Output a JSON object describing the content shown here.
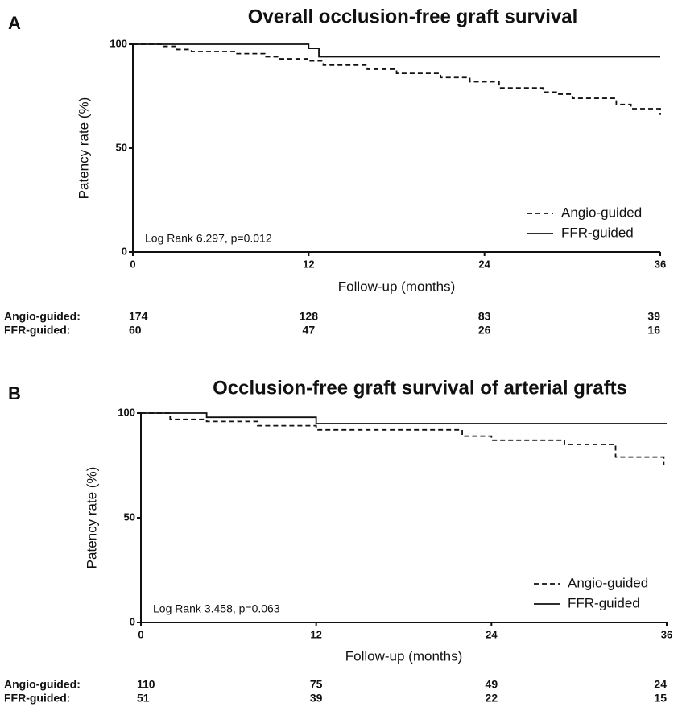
{
  "chart_data": [
    {
      "type": "line",
      "panel": "A",
      "title": "Overall occlusion-free graft survival",
      "x_label": "Follow-up (months)",
      "y_label": "Patency rate (%)",
      "annotation": "Log Rank 6.297, p=0.012",
      "step": true,
      "legend": "lower right",
      "xlim": [
        0,
        36
      ],
      "xticks": [
        0,
        12,
        24,
        36
      ],
      "ylim": [
        0,
        100
      ],
      "yticks": [
        0,
        50,
        100
      ],
      "series": [
        {
          "name": "Angio-guided",
          "color": "#111111",
          "line_style": "dashed",
          "x": [
            0,
            2,
            3,
            4,
            7,
            9,
            10,
            12,
            13,
            16,
            18,
            21,
            23,
            25,
            28,
            29,
            30,
            33,
            34,
            36
          ],
          "values": [
            100,
            99,
            97.5,
            96.5,
            95.5,
            94,
            93,
            92,
            90,
            88,
            86,
            84,
            82,
            79,
            77,
            76,
            74,
            71,
            69,
            66
          ]
        },
        {
          "name": "FFR-guided",
          "color": "#111111",
          "line_style": "solid",
          "x": [
            0,
            12,
            12.7,
            36
          ],
          "values": [
            100,
            98,
            94,
            94
          ]
        }
      ],
      "risk_table": [
        {
          "name": "Angio-guided:",
          "counts": [
            174,
            128,
            83,
            39
          ]
        },
        {
          "name": "FFR-guided:",
          "counts": [
            60,
            47,
            26,
            16
          ]
        }
      ]
    },
    {
      "type": "line",
      "panel": "B",
      "title": "Occlusion-free graft survival of arterial grafts",
      "x_label": "Follow-up (months)",
      "y_label": "Patency rate (%)",
      "annotation": "Log Rank 3.458, p=0.063",
      "step": true,
      "legend": "lower right",
      "xlim": [
        0,
        36
      ],
      "xticks": [
        0,
        12,
        24,
        36
      ],
      "ylim": [
        0,
        100
      ],
      "yticks": [
        0,
        50,
        100
      ],
      "series": [
        {
          "name": "Angio-guided",
          "color": "#111111",
          "line_style": "dashed",
          "x": [
            0,
            2,
            4.5,
            8,
            12,
            22,
            24,
            29,
            32.5,
            35.8
          ],
          "values": [
            100,
            97,
            96,
            94,
            92,
            89,
            87,
            85,
            79,
            75
          ]
        },
        {
          "name": "FFR-guided",
          "color": "#111111",
          "line_style": "solid",
          "x": [
            0,
            4.5,
            12,
            36
          ],
          "values": [
            100,
            98,
            95,
            95
          ]
        }
      ],
      "risk_table": [
        {
          "name": "Angio-guided:",
          "counts": [
            110,
            75,
            49,
            24
          ]
        },
        {
          "name": "FFR-guided:",
          "counts": [
            51,
            39,
            22,
            15
          ]
        }
      ]
    }
  ]
}
